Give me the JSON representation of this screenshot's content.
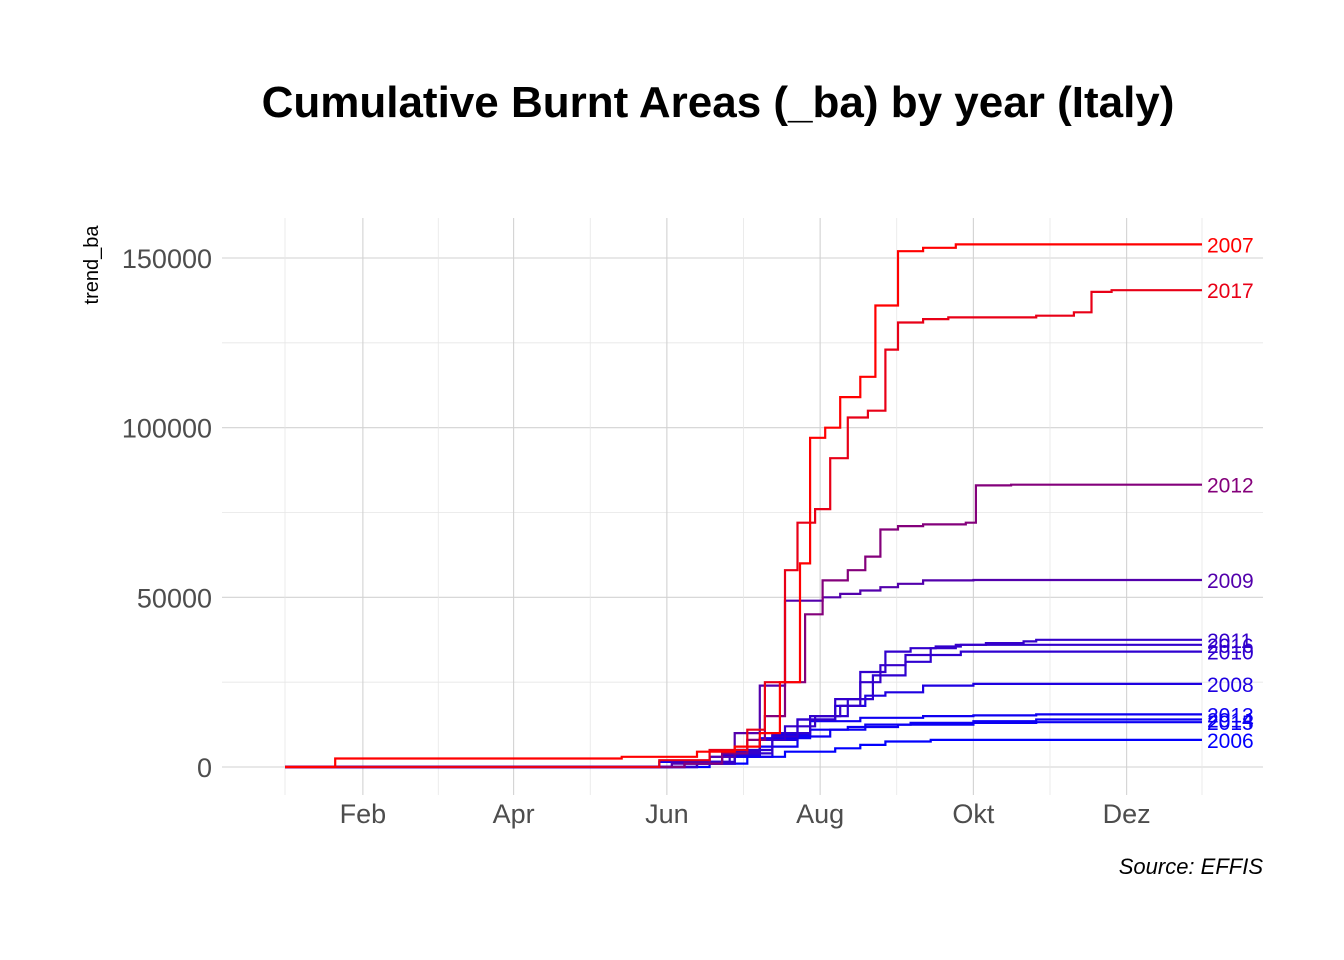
{
  "chart_data": {
    "type": "line",
    "step": true,
    "title": "Cumulative Burnt Areas (_ba) by year (Italy)",
    "xlabel": "",
    "ylabel": "trend_ba",
    "caption": "Source: EFFIS",
    "x_unit": "day_of_year",
    "xlim": [
      1,
      365
    ],
    "ylim": [
      0,
      155000
    ],
    "x_ticks": [
      {
        "day": 32,
        "label": "Feb"
      },
      {
        "day": 92,
        "label": "Apr"
      },
      {
        "day": 153,
        "label": "Jun"
      },
      {
        "day": 214,
        "label": "Aug"
      },
      {
        "day": 275,
        "label": "Okt"
      },
      {
        "day": 336,
        "label": "Dez"
      }
    ],
    "y_ticks": [
      0,
      50000,
      100000,
      150000
    ],
    "grid": true,
    "color_scale": {
      "low": "#0000ff",
      "high": "#ff0000",
      "low_value": 7000,
      "high_value": 154000
    },
    "series": [
      {
        "name": "2007",
        "points": [
          [
            1,
            0
          ],
          [
            21,
            2500
          ],
          [
            135,
            3000
          ],
          [
            165,
            4500
          ],
          [
            180,
            6000
          ],
          [
            190,
            10000
          ],
          [
            198,
            25000
          ],
          [
            206,
            60000
          ],
          [
            210,
            97000
          ],
          [
            216,
            100000
          ],
          [
            222,
            109000
          ],
          [
            230,
            115000
          ],
          [
            236,
            136000
          ],
          [
            245,
            152000
          ],
          [
            255,
            153000
          ],
          [
            268,
            154000
          ],
          [
            366,
            154000
          ]
        ]
      },
      {
        "name": "2017",
        "points": [
          [
            1,
            0
          ],
          [
            150,
            2000
          ],
          [
            170,
            5000
          ],
          [
            185,
            11000
          ],
          [
            192,
            25000
          ],
          [
            200,
            58000
          ],
          [
            205,
            72000
          ],
          [
            212,
            76000
          ],
          [
            218,
            91000
          ],
          [
            225,
            103000
          ],
          [
            233,
            105000
          ],
          [
            240,
            123000
          ],
          [
            245,
            131000
          ],
          [
            255,
            132000
          ],
          [
            265,
            132500
          ],
          [
            300,
            133000
          ],
          [
            315,
            134000
          ],
          [
            322,
            140000
          ],
          [
            330,
            140500
          ],
          [
            366,
            140500
          ]
        ]
      },
      {
        "name": "2012",
        "points": [
          [
            1,
            0
          ],
          [
            160,
            1000
          ],
          [
            175,
            4000
          ],
          [
            185,
            8000
          ],
          [
            192,
            15000
          ],
          [
            200,
            25000
          ],
          [
            208,
            45000
          ],
          [
            215,
            55000
          ],
          [
            225,
            58000
          ],
          [
            232,
            62000
          ],
          [
            238,
            70000
          ],
          [
            245,
            71000
          ],
          [
            255,
            71500
          ],
          [
            272,
            72000
          ],
          [
            276,
            83000
          ],
          [
            290,
            83200
          ],
          [
            366,
            83200
          ]
        ]
      },
      {
        "name": "2009",
        "points": [
          [
            1,
            0
          ],
          [
            155,
            1000
          ],
          [
            170,
            3000
          ],
          [
            180,
            10000
          ],
          [
            190,
            24000
          ],
          [
            200,
            49000
          ],
          [
            215,
            50000
          ],
          [
            222,
            51000
          ],
          [
            230,
            52000
          ],
          [
            238,
            53000
          ],
          [
            245,
            54000
          ],
          [
            255,
            55000
          ],
          [
            275,
            55100
          ],
          [
            366,
            55100
          ]
        ]
      },
      {
        "name": "2011",
        "points": [
          [
            1,
            0
          ],
          [
            160,
            1500
          ],
          [
            178,
            4500
          ],
          [
            190,
            8000
          ],
          [
            200,
            12000
          ],
          [
            212,
            15000
          ],
          [
            222,
            18000
          ],
          [
            230,
            25000
          ],
          [
            238,
            30000
          ],
          [
            248,
            33000
          ],
          [
            258,
            35000
          ],
          [
            268,
            36000
          ],
          [
            280,
            36500
          ],
          [
            295,
            37000
          ],
          [
            300,
            37500
          ],
          [
            366,
            37500
          ]
        ]
      },
      {
        "name": "2016",
        "points": [
          [
            1,
            0
          ],
          [
            165,
            1000
          ],
          [
            180,
            4000
          ],
          [
            195,
            9000
          ],
          [
            205,
            14000
          ],
          [
            220,
            20000
          ],
          [
            230,
            28000
          ],
          [
            240,
            34000
          ],
          [
            250,
            35000
          ],
          [
            260,
            35500
          ],
          [
            270,
            36000
          ],
          [
            366,
            36000
          ]
        ]
      },
      {
        "name": "2010",
        "points": [
          [
            1,
            0
          ],
          [
            165,
            1500
          ],
          [
            180,
            5000
          ],
          [
            195,
            10000
          ],
          [
            210,
            15000
          ],
          [
            225,
            20000
          ],
          [
            235,
            27000
          ],
          [
            248,
            31000
          ],
          [
            258,
            33000
          ],
          [
            270,
            34000
          ],
          [
            366,
            34000
          ]
        ]
      },
      {
        "name": "2008",
        "points": [
          [
            1,
            0
          ],
          [
            155,
            1500
          ],
          [
            175,
            3500
          ],
          [
            190,
            8000
          ],
          [
            205,
            14000
          ],
          [
            220,
            18000
          ],
          [
            232,
            21000
          ],
          [
            240,
            22000
          ],
          [
            255,
            24000
          ],
          [
            275,
            24500
          ],
          [
            366,
            24500
          ]
        ]
      },
      {
        "name": "2013",
        "points": [
          [
            1,
            0
          ],
          [
            165,
            1000
          ],
          [
            180,
            3000
          ],
          [
            195,
            9500
          ],
          [
            210,
            13500
          ],
          [
            230,
            14500
          ],
          [
            255,
            15000
          ],
          [
            275,
            15200
          ],
          [
            300,
            15500
          ],
          [
            366,
            15500
          ]
        ]
      },
      {
        "name": "2014",
        "points": [
          [
            1,
            0
          ],
          [
            150,
            1500
          ],
          [
            170,
            3000
          ],
          [
            190,
            6000
          ],
          [
            205,
            9000
          ],
          [
            218,
            11000
          ],
          [
            232,
            12500
          ],
          [
            250,
            13000
          ],
          [
            275,
            13500
          ],
          [
            300,
            14000
          ],
          [
            366,
            14000
          ]
        ]
      },
      {
        "name": "2015",
        "points": [
          [
            1,
            0
          ],
          [
            160,
            1000
          ],
          [
            175,
            3500
          ],
          [
            190,
            8500
          ],
          [
            210,
            11000
          ],
          [
            225,
            11800
          ],
          [
            245,
            12500
          ],
          [
            275,
            13000
          ],
          [
            300,
            13200
          ],
          [
            366,
            13200
          ]
        ]
      },
      {
        "name": "2006",
        "points": [
          [
            1,
            0
          ],
          [
            170,
            1000
          ],
          [
            185,
            3000
          ],
          [
            200,
            4500
          ],
          [
            220,
            5500
          ],
          [
            230,
            6500
          ],
          [
            240,
            7500
          ],
          [
            258,
            8000
          ],
          [
            366,
            8000
          ]
        ]
      }
    ],
    "end_labels": [
      {
        "name": "2007",
        "y": 154000
      },
      {
        "name": "2017",
        "y": 140500
      },
      {
        "name": "2012",
        "y": 83200
      },
      {
        "name": "2009",
        "y": 55100
      },
      {
        "name": "2011",
        "y": 37500
      },
      {
        "name": "2016",
        "y": 36000
      },
      {
        "name": "2010",
        "y": 34000
      },
      {
        "name": "2008",
        "y": 24500
      },
      {
        "name": "2013",
        "y": 15500
      },
      {
        "name": "2014",
        "y": 14000
      },
      {
        "name": "2015",
        "y": 13200
      },
      {
        "name": "2006",
        "y": 8000
      }
    ]
  }
}
